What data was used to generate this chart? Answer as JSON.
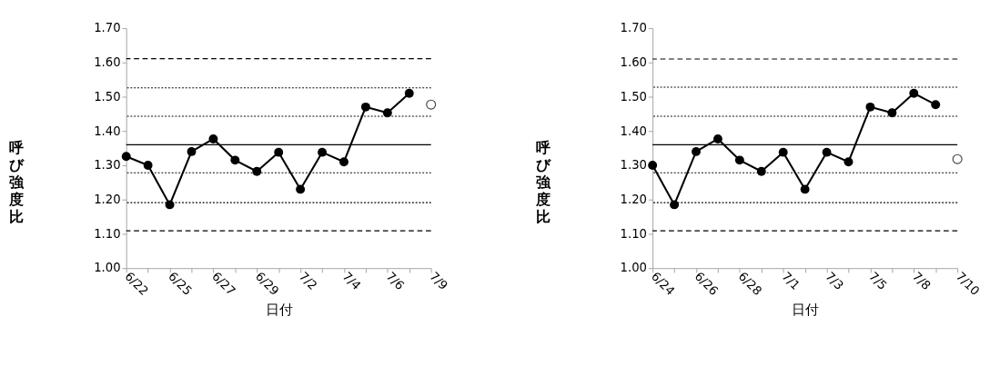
{
  "chart_data": [
    {
      "type": "line",
      "xlabel": "日付",
      "ylabel": "呼び強度比",
      "categories": [
        "6/22",
        null,
        "6/25",
        null,
        "6/27",
        null,
        "6/29",
        null,
        "7/2",
        null,
        "7/4",
        null,
        "7/6",
        null,
        "7/9"
      ],
      "series": [
        {
          "type": "line",
          "color": "#000000",
          "values": [
            1.326,
            1.3,
            1.185,
            1.34,
            1.377,
            1.315,
            1.282,
            1.338,
            1.23,
            1.338,
            1.31,
            1.47,
            1.453,
            1.51,
            null
          ]
        },
        {
          "type": "scatter",
          "color": "#404040",
          "values": [
            null,
            null,
            null,
            null,
            null,
            null,
            null,
            null,
            null,
            null,
            null,
            null,
            null,
            null,
            1.477
          ]
        }
      ],
      "ylim": [
        1.0,
        1.7
      ],
      "yticks": [
        {
          "value": 1.0,
          "label": "1.00"
        },
        {
          "value": 1.1,
          "label": "1.10"
        },
        {
          "value": 1.2,
          "label": "1.20"
        },
        {
          "value": 1.3,
          "label": "1.30"
        },
        {
          "value": 1.4,
          "label": "1.40"
        },
        {
          "value": 1.5,
          "label": "1.50"
        },
        {
          "value": 1.6,
          "label": "1.60"
        },
        {
          "value": 1.7,
          "label": "1.70"
        }
      ],
      "ref_lines": [
        {
          "axis": "y",
          "value": 1.611,
          "color": "#000000",
          "line_style": "dashed"
        },
        {
          "axis": "y",
          "value": 1.526,
          "color": "#000000",
          "line_style": "dotted"
        },
        {
          "axis": "y",
          "value": 1.443,
          "color": "#000000",
          "line_style": "dotted"
        },
        {
          "axis": "y",
          "value": 1.36,
          "color": "#000000",
          "line_style": "solid"
        },
        {
          "axis": "y",
          "value": 1.278,
          "color": "#000000",
          "line_style": "dotted"
        },
        {
          "axis": "y",
          "value": 1.191,
          "color": "#000000",
          "line_style": "dotted"
        },
        {
          "axis": "y",
          "value": 1.109,
          "color": "#000000",
          "line_style": "dashed"
        }
      ],
      "grid": false,
      "legend": false,
      "marker": "circle",
      "line_style": "solid"
    },
    {
      "type": "line",
      "xlabel": "日付",
      "ylabel": "呼び強度比",
      "categories": [
        "6/24",
        null,
        "6/26",
        null,
        "6/28",
        null,
        "7/1",
        null,
        "7/3",
        null,
        "7/5",
        null,
        "7/8",
        null,
        "7/10"
      ],
      "series": [
        {
          "type": "line",
          "color": "#000000",
          "values": [
            1.3,
            1.185,
            1.34,
            1.377,
            1.315,
            1.282,
            1.338,
            1.23,
            1.338,
            1.31,
            1.47,
            1.453,
            1.51,
            1.477,
            null
          ]
        },
        {
          "type": "scatter",
          "color": "#404040",
          "values": [
            null,
            null,
            null,
            null,
            null,
            null,
            null,
            null,
            null,
            null,
            null,
            null,
            null,
            null,
            1.318
          ]
        }
      ],
      "ylim": [
        1.0,
        1.7
      ],
      "yticks": [
        {
          "value": 1.0,
          "label": "1.00"
        },
        {
          "value": 1.1,
          "label": "1.10"
        },
        {
          "value": 1.2,
          "label": "1.20"
        },
        {
          "value": 1.3,
          "label": "1.30"
        },
        {
          "value": 1.4,
          "label": "1.40"
        },
        {
          "value": 1.5,
          "label": "1.50"
        },
        {
          "value": 1.6,
          "label": "1.60"
        },
        {
          "value": 1.7,
          "label": "1.70"
        }
      ],
      "ref_lines": [
        {
          "axis": "y",
          "value": 1.61,
          "color": "#000000",
          "line_style": "dashed"
        },
        {
          "axis": "y",
          "value": 1.528,
          "color": "#000000",
          "line_style": "dotted"
        },
        {
          "axis": "y",
          "value": 1.443,
          "color": "#000000",
          "line_style": "dotted"
        },
        {
          "axis": "y",
          "value": 1.36,
          "color": "#000000",
          "line_style": "solid"
        },
        {
          "axis": "y",
          "value": 1.278,
          "color": "#000000",
          "line_style": "dotted"
        },
        {
          "axis": "y",
          "value": 1.191,
          "color": "#000000",
          "line_style": "dotted"
        },
        {
          "axis": "y",
          "value": 1.109,
          "color": "#000000",
          "line_style": "dashed"
        }
      ],
      "grid": false,
      "legend": false,
      "marker": "circle",
      "line_style": "solid"
    }
  ]
}
